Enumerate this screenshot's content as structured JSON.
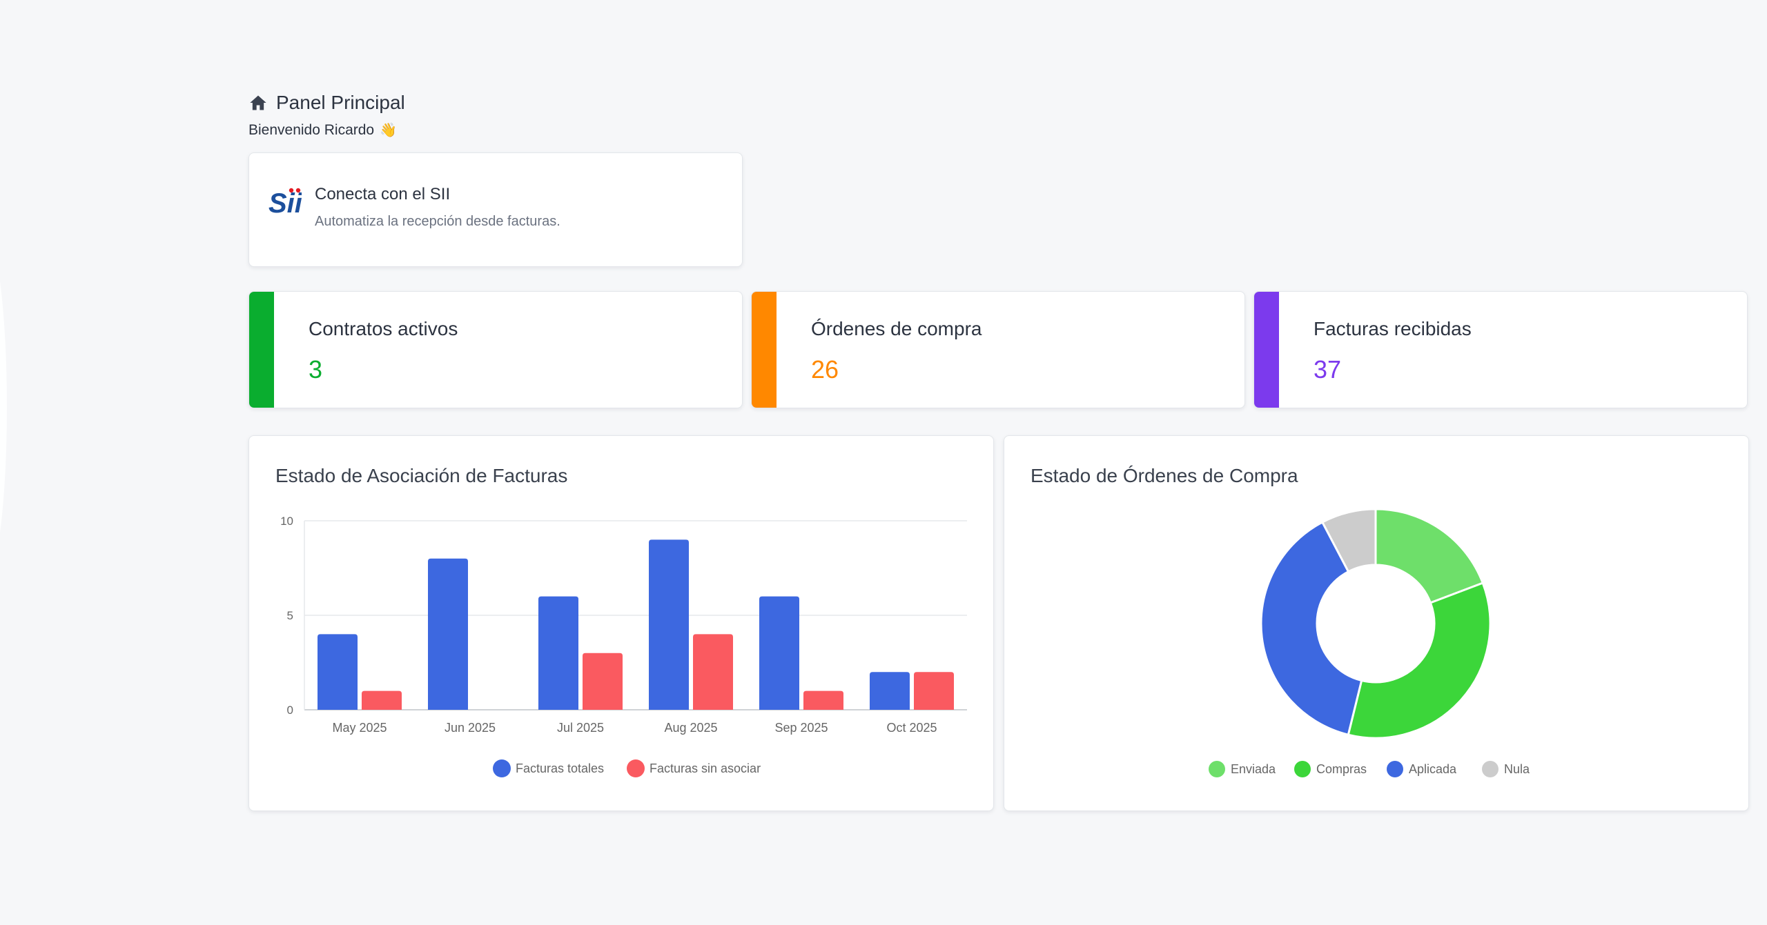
{
  "header": {
    "title": "Panel Principal",
    "welcome": "Bienvenido Ricardo",
    "welcome_emoji": "👋",
    "home_icon": "home-icon"
  },
  "sii_card": {
    "logo_text": "Sii",
    "title": "Conecta con el SII",
    "subtitle": "Automatiza la recepción desde facturas."
  },
  "stats": [
    {
      "label": "Contratos activos",
      "value": "3",
      "color": "#0aad2f"
    },
    {
      "label": "Órdenes de compra",
      "value": "26",
      "color": "#ff8800"
    },
    {
      "label": "Facturas recibidas",
      "value": "37",
      "color": "#7c3aed"
    }
  ],
  "chart_data": [
    {
      "type": "bar",
      "title": "Estado de Asociación de Facturas",
      "categories": [
        "May 2025",
        "Jun 2025",
        "Jul 2025",
        "Aug 2025",
        "Sep 2025",
        "Oct 2025"
      ],
      "series": [
        {
          "name": "Facturas totales",
          "color": "#3d68e0",
          "values": [
            4,
            8,
            6,
            9,
            6,
            2
          ]
        },
        {
          "name": "Facturas sin asociar",
          "color": "#fa5a60",
          "values": [
            1,
            0,
            3,
            4,
            1,
            2
          ]
        }
      ],
      "ylim": [
        0,
        10
      ],
      "yticks": [
        0,
        5,
        10
      ],
      "grid": true,
      "legend": "bottom"
    },
    {
      "type": "pie",
      "title": "Estado de Órdenes de Compra",
      "labels": [
        "Enviada",
        "Compras",
        "Aplicada",
        "Nula"
      ],
      "values": [
        5,
        9,
        10,
        2
      ],
      "colors": [
        "#6edf6a",
        "#3cd63a",
        "#3d68e0",
        "#cccccc"
      ],
      "donut": true,
      "legend": "bottom"
    }
  ]
}
